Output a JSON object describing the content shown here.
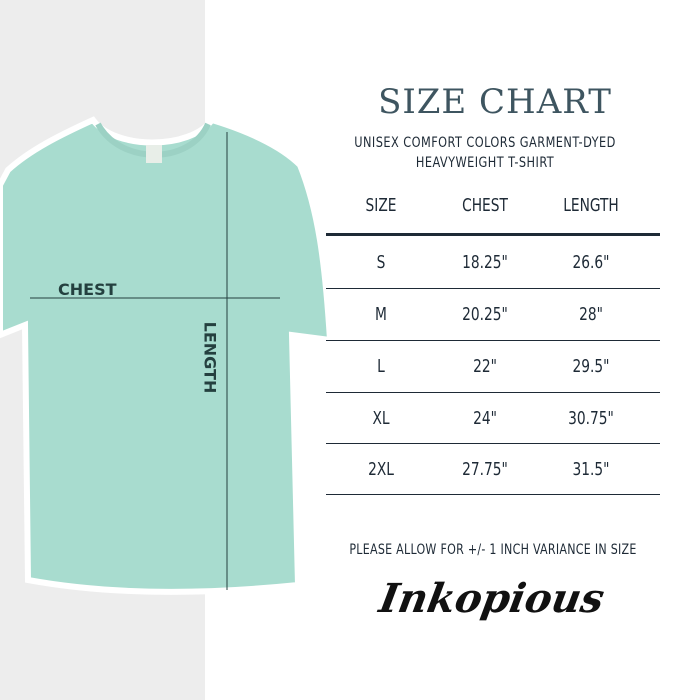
{
  "title": "SIZE CHART",
  "subtitle": [
    "UNISEX COMFORT COLORS GARMENT-DYED",
    "HEAVYWEIGHT T-SHIRT"
  ],
  "table": {
    "headers": [
      "SIZE",
      "CHEST",
      "LENGTH"
    ],
    "rows": [
      [
        "S",
        "18.25\"",
        "26.6\""
      ],
      [
        "M",
        "20.25\"",
        "28\""
      ],
      [
        "L",
        "22\"",
        "29.5\""
      ],
      [
        "XL",
        "24\"",
        "30.75\""
      ],
      [
        "2XL",
        "27.75\"",
        "31.5\""
      ]
    ]
  },
  "shirt": {
    "chest_label": "CHEST",
    "length_label": "LENGTH",
    "color": "#a8dccf"
  },
  "note": "PLEASE ALLOW FOR +/- 1 INCH VARIANCE IN SIZE",
  "logo": "Inkopious",
  "colors": {
    "text": "#1e2a36",
    "title": "#3e5560",
    "background_left": "#ededed"
  }
}
